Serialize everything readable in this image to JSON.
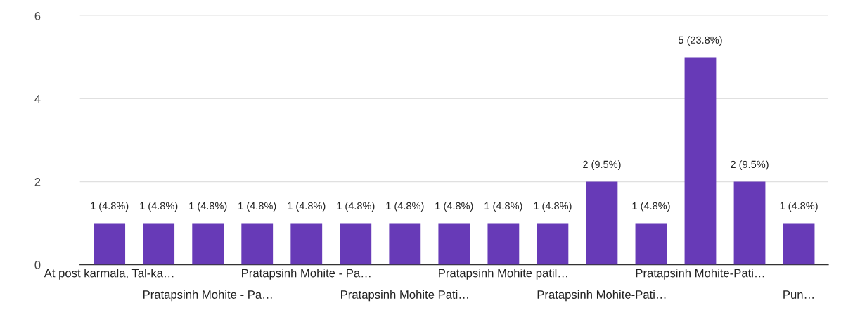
{
  "chart_data": {
    "type": "bar",
    "categories": [
      "At post karmala, Tal-ka…",
      null,
      "Pratapsinh Mohite - Pa…",
      null,
      "Pratapsinh Mohite - Pa…",
      null,
      "Pratapsinh Mohite Pati…",
      null,
      "Pratapsinh Mohite patil…",
      null,
      "Pratapsinh Mohite-Pati…",
      null,
      "Pratapsinh Mohite-Pati…",
      null,
      "Pun…"
    ],
    "values": [
      1,
      1,
      1,
      1,
      1,
      1,
      1,
      1,
      1,
      1,
      2,
      1,
      5,
      2,
      1
    ],
    "value_labels": [
      "1 (4.8%)",
      "1 (4.8%)",
      "1 (4.8%)",
      "1 (4.8%)",
      "1 (4.8%)",
      "1 (4.8%)",
      "1 (4.8%)",
      "1 (4.8%)",
      "1 (4.8%)",
      "1 (4.8%)",
      "2 (9.5%)",
      "1 (4.8%)",
      "5 (23.8%)",
      "2 (9.5%)",
      "1 (4.8%)"
    ],
    "color": "#673ab7",
    "ylim": [
      0,
      6
    ],
    "yticks": [
      0,
      2,
      4,
      6
    ],
    "grid": "y"
  }
}
